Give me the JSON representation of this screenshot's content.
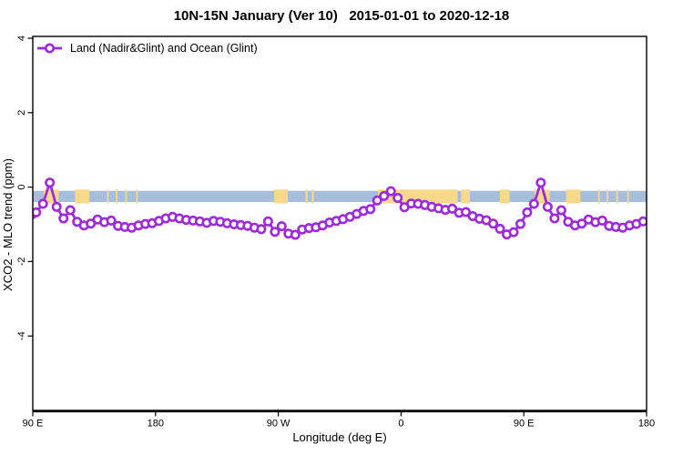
{
  "chart_data": {
    "type": "line",
    "title": "10N-15N January (Ver 10)   2015-01-01 to 2020-12-18",
    "xlabel": "Longitude (deg E)",
    "ylabel": "XCO2 - MLO trend (ppm)",
    "xlim": [
      90,
      540
    ],
    "ylim": [
      -6.0,
      4.05
    ],
    "grid": "off",
    "legend_position": "top-left-inside",
    "xticks": [
      {
        "pos": 90,
        "label": "90 E"
      },
      {
        "pos": 180,
        "label": "180"
      },
      {
        "pos": 270,
        "label": "90 W"
      },
      {
        "pos": 360,
        "label": "0"
      },
      {
        "pos": 450,
        "label": "90 E"
      },
      {
        "pos": 540,
        "label": "180"
      }
    ],
    "yticks": [
      {
        "pos": -4,
        "label": "-4"
      },
      {
        "pos": -2,
        "label": "-2"
      },
      {
        "pos": 0,
        "label": "0"
      },
      {
        "pos": 2,
        "label": "2"
      },
      {
        "pos": 4,
        "label": "4"
      }
    ],
    "series": [
      {
        "name": "Land (Nadir&Glint) and Ocean (Glint)",
        "color": "#9C2BDB",
        "marker": "open-circle",
        "marker_fill": "#ffffff",
        "points": [
          [
            89.5,
            -0.73
          ],
          [
            92.5,
            -0.68
          ],
          [
            97.5,
            -0.45
          ],
          [
            102.5,
            0.12
          ],
          [
            107.5,
            -0.53
          ],
          [
            112.5,
            -0.84
          ],
          [
            117.5,
            -0.62
          ],
          [
            122.5,
            -0.93
          ],
          [
            127.5,
            -1.03
          ],
          [
            132.5,
            -0.98
          ],
          [
            137.5,
            -0.87
          ],
          [
            142.5,
            -0.94
          ],
          [
            147.5,
            -0.9
          ],
          [
            152.5,
            -1.04
          ],
          [
            157.5,
            -1.07
          ],
          [
            162.5,
            -1.09
          ],
          [
            167.5,
            -1.03
          ],
          [
            172.5,
            -0.99
          ],
          [
            177.5,
            -0.97
          ],
          [
            182.5,
            -0.91
          ],
          [
            187.5,
            -0.84
          ],
          [
            192.5,
            -0.8
          ],
          [
            197.5,
            -0.84
          ],
          [
            202.5,
            -0.88
          ],
          [
            207.5,
            -0.9
          ],
          [
            212.5,
            -0.92
          ],
          [
            217.5,
            -0.96
          ],
          [
            222.5,
            -0.91
          ],
          [
            227.5,
            -0.93
          ],
          [
            232.5,
            -0.97
          ],
          [
            237.5,
            -1.0
          ],
          [
            242.5,
            -1.02
          ],
          [
            247.5,
            -1.04
          ],
          [
            252.5,
            -1.09
          ],
          [
            257.5,
            -1.13
          ],
          [
            262.5,
            -0.92
          ],
          [
            267.5,
            -1.2
          ],
          [
            272.5,
            -1.05
          ],
          [
            277.5,
            -1.25
          ],
          [
            282.5,
            -1.28
          ],
          [
            287.5,
            -1.14
          ],
          [
            292.5,
            -1.1
          ],
          [
            297.5,
            -1.08
          ],
          [
            302.5,
            -1.03
          ],
          [
            307.5,
            -0.95
          ],
          [
            312.5,
            -0.91
          ],
          [
            317.5,
            -0.86
          ],
          [
            322.5,
            -0.8
          ],
          [
            327.5,
            -0.72
          ],
          [
            332.5,
            -0.64
          ],
          [
            337.5,
            -0.59
          ],
          [
            342.5,
            -0.36
          ],
          [
            347.5,
            -0.24
          ],
          [
            352.5,
            -0.11
          ],
          [
            357.5,
            -0.29
          ],
          [
            362.5,
            -0.54
          ],
          [
            367.5,
            -0.44
          ],
          [
            372.5,
            -0.45
          ],
          [
            377.5,
            -0.48
          ],
          [
            382.5,
            -0.53
          ],
          [
            387.5,
            -0.57
          ],
          [
            392.5,
            -0.61
          ],
          [
            397.5,
            -0.58
          ],
          [
            402.5,
            -0.69
          ],
          [
            407.5,
            -0.67
          ],
          [
            412.5,
            -0.78
          ],
          [
            417.5,
            -0.85
          ],
          [
            422.5,
            -0.89
          ],
          [
            427.5,
            -0.98
          ],
          [
            432.5,
            -1.12
          ],
          [
            437.5,
            -1.27
          ],
          [
            442.5,
            -1.21
          ],
          [
            447.5,
            -0.99
          ],
          [
            452.5,
            -0.68
          ],
          [
            457.5,
            -0.45
          ],
          [
            462.5,
            0.12
          ],
          [
            467.5,
            -0.53
          ],
          [
            472.5,
            -0.84
          ],
          [
            477.5,
            -0.62
          ],
          [
            482.5,
            -0.93
          ],
          [
            487.5,
            -1.03
          ],
          [
            492.5,
            -0.98
          ],
          [
            497.5,
            -0.87
          ],
          [
            502.5,
            -0.94
          ],
          [
            507.5,
            -0.9
          ],
          [
            512.5,
            -1.04
          ],
          [
            517.5,
            -1.07
          ],
          [
            522.5,
            -1.09
          ],
          [
            527.5,
            -1.03
          ],
          [
            532.5,
            -0.99
          ],
          [
            537.5,
            -0.92
          ]
        ]
      }
    ],
    "map_strip": {
      "description": "land-ocean reference strip along 10N-15N",
      "ocean_color": "#A7BDDC",
      "land_color": "#F8D98C",
      "y_top_ppm": -0.1,
      "y_bottom_ppm": -0.4,
      "ocean_range_deg": [
        90,
        540
      ],
      "land_segments_deg": [
        [
          98,
          109
        ],
        [
          121,
          131.5
        ],
        [
          144.5,
          145.7
        ],
        [
          150.8,
          152
        ],
        [
          157.8,
          159
        ],
        [
          165.8,
          167
        ],
        [
          267,
          277
        ],
        [
          290,
          291.5
        ],
        [
          294.5,
          296
        ],
        [
          343,
          401.5
        ],
        [
          404,
          410.5
        ],
        [
          432.5,
          439.5
        ],
        [
          458,
          469
        ],
        [
          481,
          491.5
        ],
        [
          504.5,
          505.7
        ],
        [
          510.8,
          512
        ],
        [
          517.8,
          519
        ],
        [
          525.8,
          527
        ]
      ]
    },
    "axis_color": "#000000",
    "background_color": "#ffffff"
  }
}
